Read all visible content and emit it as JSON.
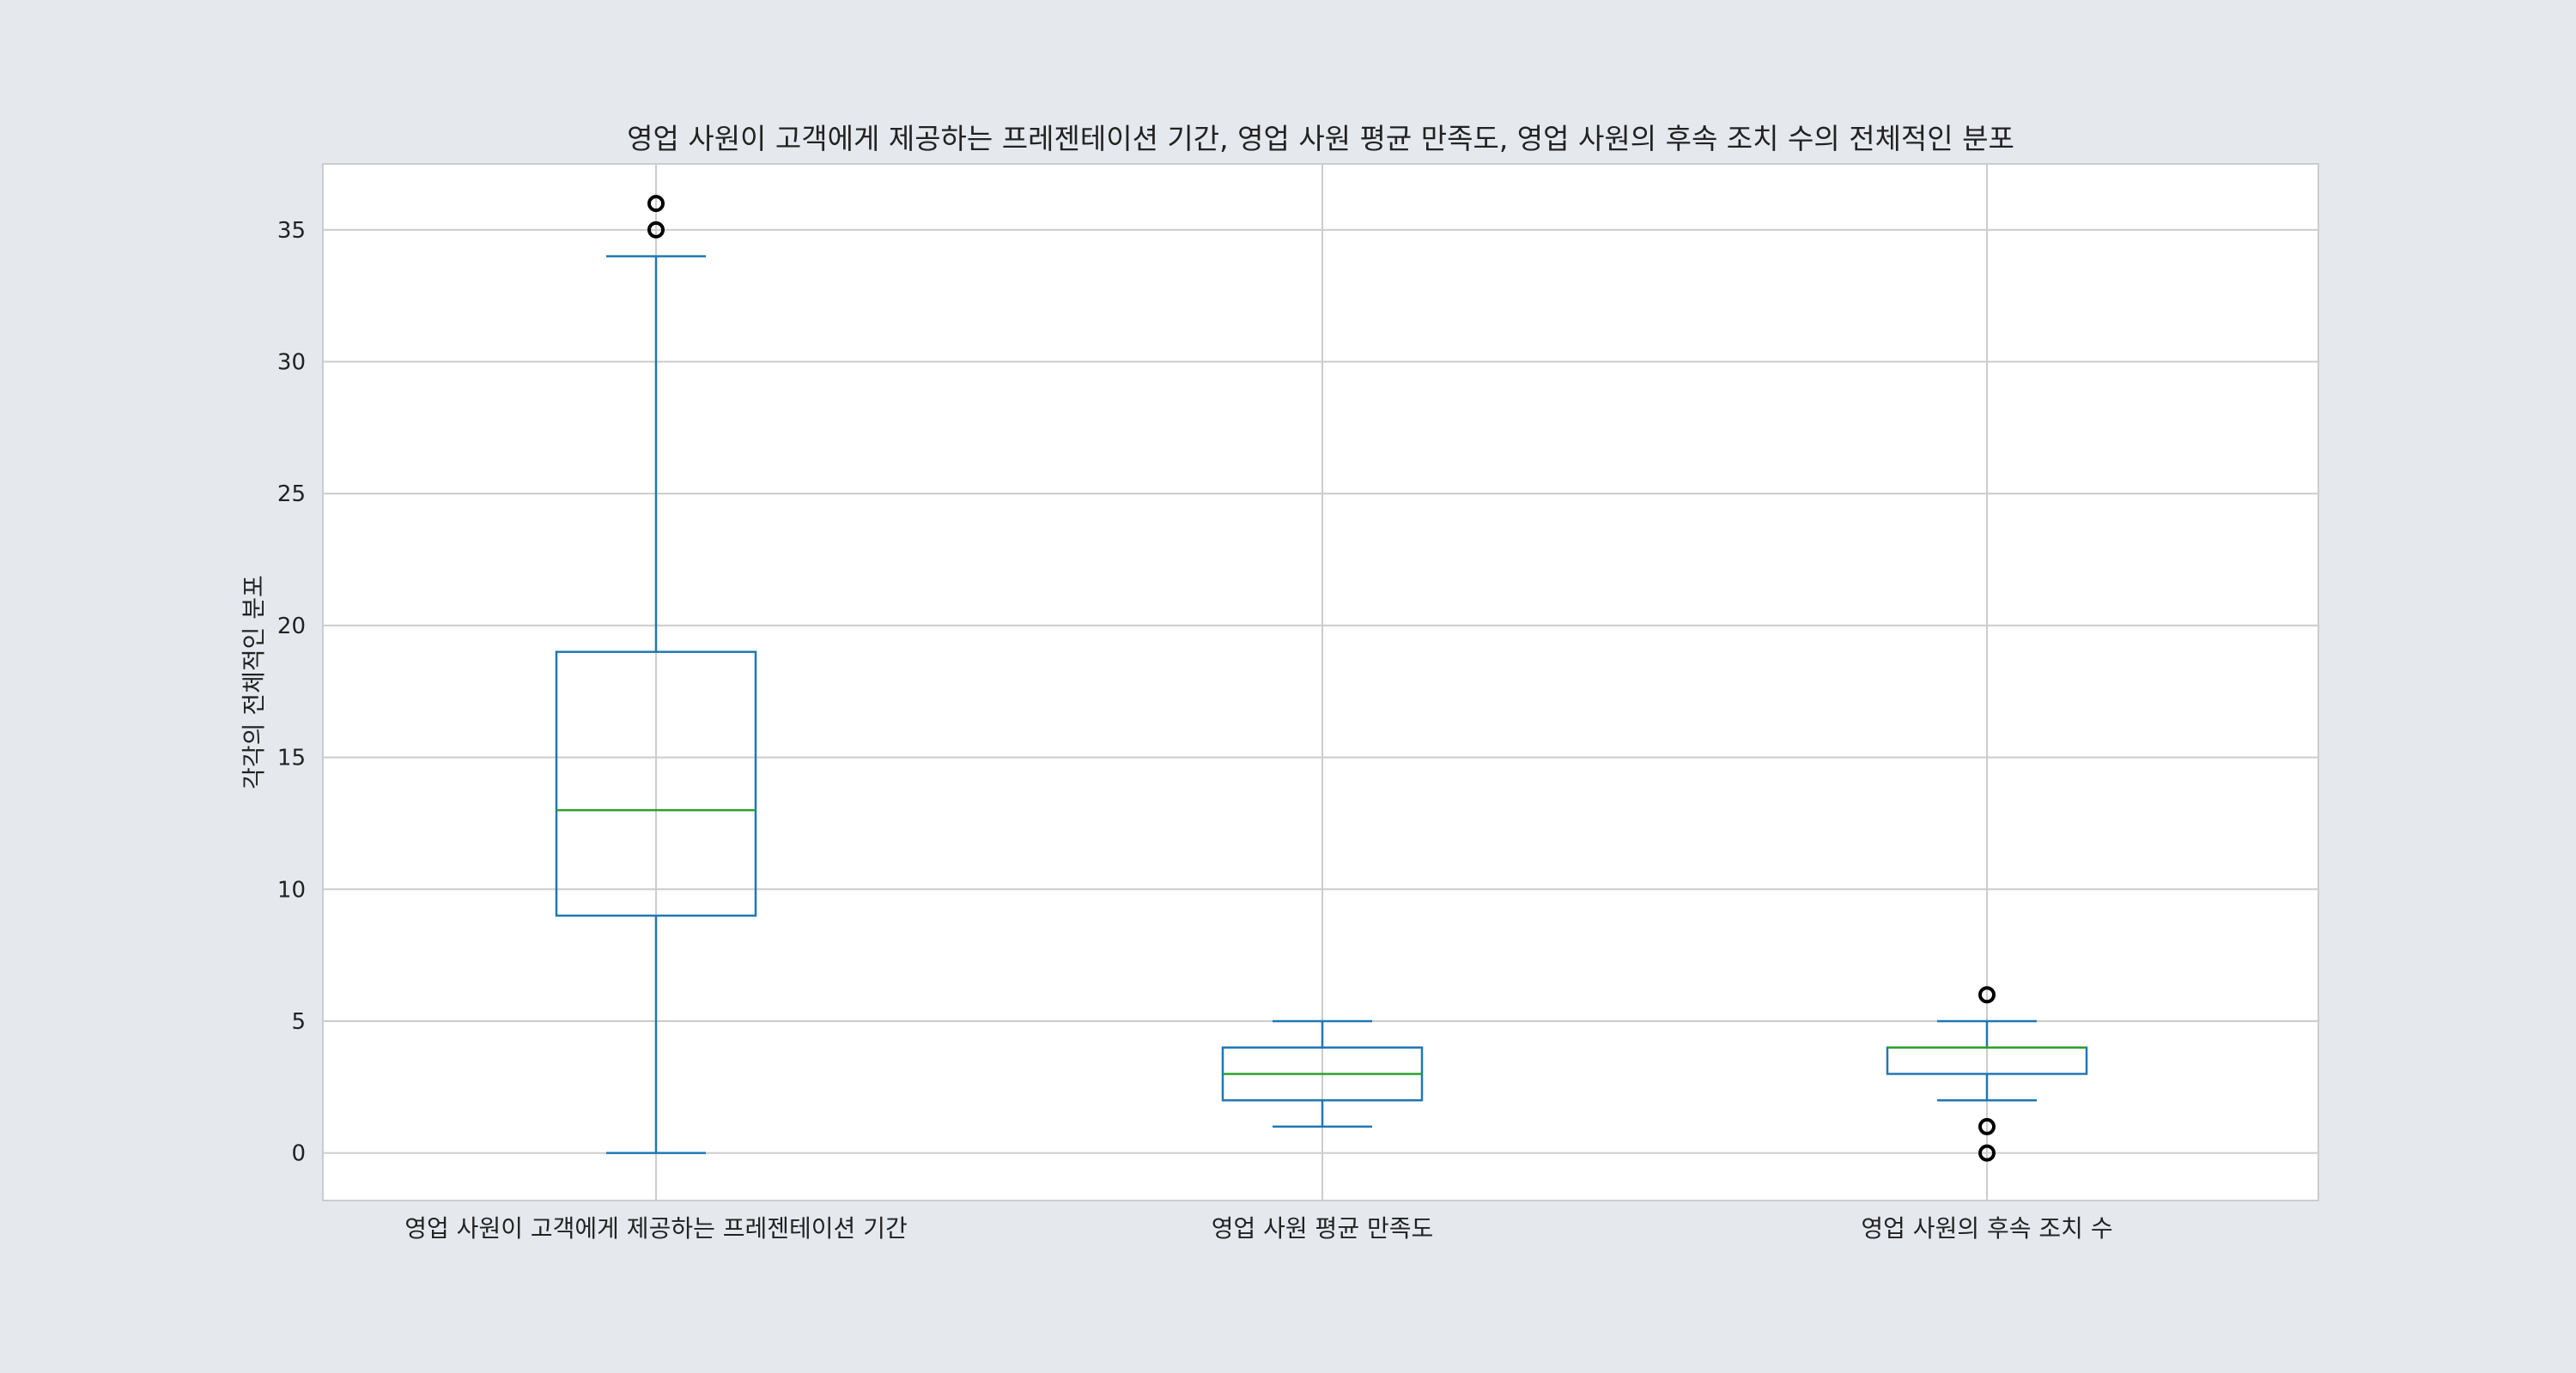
{
  "chart_data": {
    "type": "box",
    "title": "영업 사원이 고객에게 제공하는 프레젠테이션 기간, 영업 사원 평균 만족도, 영업 사원의 후속 조치 수의 전체적인 분포",
    "xlabel": "",
    "ylabel": "각각의 전체적인 분포",
    "ylim": [
      -1.8,
      37.5
    ],
    "yticks": [
      0,
      5,
      10,
      15,
      20,
      25,
      30,
      35
    ],
    "ytick_labels": [
      "0",
      "5",
      "10",
      "15",
      "20",
      "25",
      "30",
      "35"
    ],
    "grid": true,
    "categories": [
      "영업 사원이 고객에게 제공하는 프레젠테이션 기간",
      "영업 사원 평균 만족도",
      "영업 사원의 후속 조치 수"
    ],
    "boxes": [
      {
        "whisker_low": 0,
        "q1": 9,
        "median": 13,
        "q3": 19,
        "whisker_high": 34,
        "outliers": [
          35,
          36
        ]
      },
      {
        "whisker_low": 1,
        "q1": 2,
        "median": 3,
        "q3": 4,
        "whisker_high": 5,
        "outliers": []
      },
      {
        "whisker_low": 2,
        "q1": 3,
        "median": 4,
        "q3": 4,
        "whisker_high": 5,
        "outliers": [
          0,
          1,
          6
        ]
      }
    ],
    "colors": {
      "box": "#1f77b4",
      "median": "#2ca02c",
      "outlier": "#000000",
      "grid": "#cccccc",
      "axes_border": "#cccccc",
      "plot_background": "#ffffff",
      "figure_background": "#e5e9ee"
    }
  }
}
